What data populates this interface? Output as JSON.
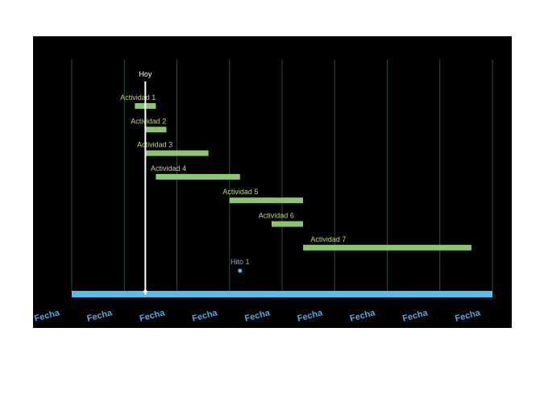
{
  "timeline": {
    "today_label": "Hoy",
    "date_labels": [
      "Fecha",
      "Fecha",
      "Fecha",
      "Fecha",
      "Fecha",
      "Fecha",
      "Fecha",
      "Fecha",
      "Fecha"
    ],
    "activities": [
      {
        "label": "Actividad 1",
        "start": 1.2,
        "end": 1.6
      },
      {
        "label": "Actividad 2",
        "start": 1.4,
        "end": 1.8
      },
      {
        "label": "Actividad 3",
        "start": 1.4,
        "end": 2.6
      },
      {
        "label": "Actividad 4",
        "start": 1.6,
        "end": 3.2
      },
      {
        "label": "Actividad 5",
        "start": 3.0,
        "end": 4.4
      },
      {
        "label": "Actividad 6",
        "start": 3.8,
        "end": 4.4
      },
      {
        "label": "Actividad 7",
        "start": 4.4,
        "end": 7.6
      }
    ],
    "milestone": {
      "label": "Hito 1",
      "position": 3.2
    },
    "today_position": 1.4,
    "colors": {
      "background": "#000000",
      "grid": "#2e4a40",
      "bar": "#8cc66e",
      "label": "#b8d96a",
      "axis": "#4fc1f0",
      "date_label": "#4fa8e0",
      "today_line": "#ffffff",
      "milestone": "#4fc1f0"
    }
  }
}
